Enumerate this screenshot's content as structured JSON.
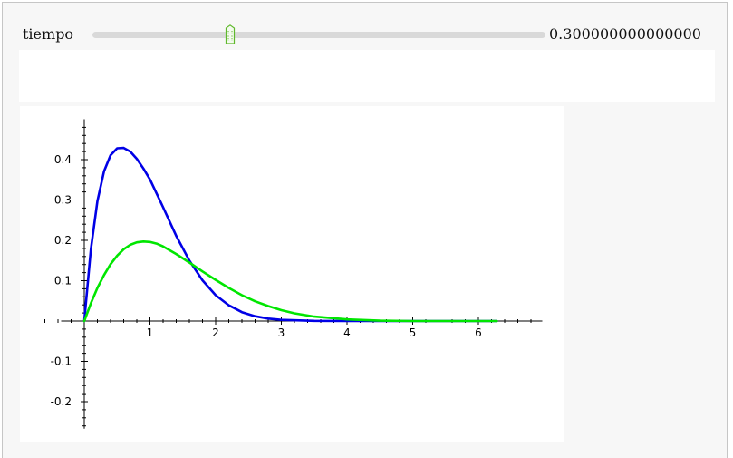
{
  "slider": {
    "label": "tiempo",
    "value": "0.300000000000000",
    "position_fraction": 0.3
  },
  "colors": {
    "curve_1": "#0000e6",
    "curve_2": "#00e600",
    "slider_handle": "#5fb82c"
  },
  "chart_data": {
    "type": "line",
    "title": "",
    "xlabel": "",
    "ylabel": "",
    "xlim": [
      -0.6,
      7.0
    ],
    "ylim": [
      -0.26,
      0.5
    ],
    "x_ticks": [
      "1",
      "2",
      "3",
      "4",
      "5",
      "6"
    ],
    "y_ticks": [
      "0.4",
      "0.3",
      "0.2",
      "0.1",
      "-0.1",
      "-0.2"
    ],
    "grid": false,
    "series": [
      {
        "color": "#0000e6",
        "x": [
          0,
          0.1,
          0.2,
          0.3,
          0.4,
          0.5,
          0.6,
          0.7,
          0.8,
          0.9,
          1.0,
          1.2,
          1.4,
          1.6,
          1.8,
          2.0,
          2.2,
          2.4,
          2.6,
          2.8,
          3.0,
          3.5,
          4.0,
          4.5,
          5.0,
          5.5,
          6.0,
          6.28
        ],
        "y": [
          0,
          0.178,
          0.297,
          0.371,
          0.411,
          0.428,
          0.429,
          0.42,
          0.402,
          0.378,
          0.351,
          0.282,
          0.211,
          0.15,
          0.101,
          0.064,
          0.039,
          0.022,
          0.012,
          0.006,
          0.003,
          0.0004,
          0.0,
          0.0,
          0.0,
          0.0,
          0.0,
          0.0
        ]
      },
      {
        "color": "#00e600",
        "x": [
          0,
          0.1,
          0.2,
          0.3,
          0.4,
          0.5,
          0.6,
          0.7,
          0.8,
          0.9,
          1.0,
          1.1,
          1.2,
          1.4,
          1.6,
          1.8,
          2.0,
          2.2,
          2.4,
          2.6,
          2.8,
          3.0,
          3.2,
          3.5,
          4.0,
          4.5,
          5.0,
          5.5,
          6.0,
          6.28
        ],
        "y": [
          0,
          0.044,
          0.082,
          0.114,
          0.141,
          0.162,
          0.178,
          0.189,
          0.195,
          0.197,
          0.196,
          0.192,
          0.185,
          0.166,
          0.145,
          0.123,
          0.102,
          0.082,
          0.064,
          0.049,
          0.037,
          0.027,
          0.019,
          0.011,
          0.004,
          0.001,
          0.0,
          0.0,
          0.0,
          0.0
        ]
      }
    ]
  }
}
